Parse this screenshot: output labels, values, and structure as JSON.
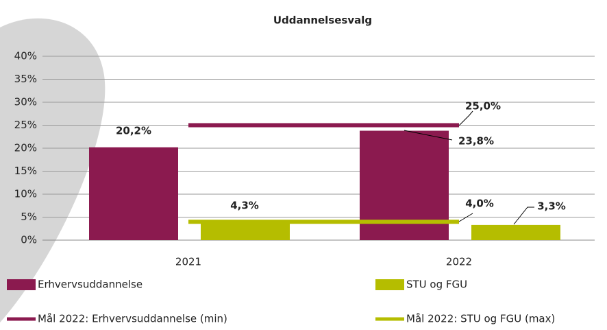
{
  "chart_data": {
    "type": "bar",
    "title": "Uddannelsesvalg",
    "categories": [
      "2021",
      "2022"
    ],
    "series": [
      {
        "name": "Erhvervsuddannelse",
        "type": "bar",
        "color": "#8b1a4f",
        "values": [
          20.2,
          23.8
        ],
        "value_labels": [
          "20,2%",
          "23,8%"
        ]
      },
      {
        "name": "STU og FGU",
        "type": "bar",
        "color": "#b5bd00",
        "values": [
          4.3,
          3.3
        ],
        "value_labels": [
          "4,3%",
          "3,3%"
        ]
      },
      {
        "name": "Mål 2022: Erhvervsuddannelse (min)",
        "type": "line",
        "color": "#8b1a4f",
        "values": [
          25.0,
          25.0
        ],
        "value_labels": [
          null,
          "25,0%"
        ]
      },
      {
        "name": "Mål 2022: STU og FGU (max)",
        "type": "line",
        "color": "#b5bd00",
        "values": [
          4.0,
          4.0
        ],
        "value_labels": [
          null,
          "4,0%"
        ]
      }
    ],
    "ylim": [
      0,
      40
    ],
    "yticks": [
      {
        "value": 0,
        "label": "0%"
      },
      {
        "value": 5,
        "label": "5%"
      },
      {
        "value": 10,
        "label": "10%"
      },
      {
        "value": 15,
        "label": "15%"
      },
      {
        "value": 20,
        "label": "20%"
      },
      {
        "value": 25,
        "label": "25%"
      },
      {
        "value": 30,
        "label": "30%"
      },
      {
        "value": 35,
        "label": "35%"
      },
      {
        "value": 40,
        "label": "40%"
      }
    ],
    "grid": true
  }
}
